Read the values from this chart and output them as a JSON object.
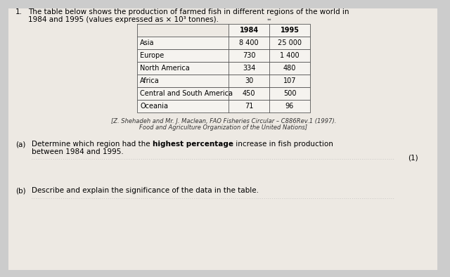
{
  "title_num": "1.",
  "title_line1": "The table below shows the production of farmed fish in different regions of the world in",
  "title_line2": "1984 and 1995 (values expressed as × 10³ tonnes).",
  "col_headers": [
    "1984",
    "1995"
  ],
  "rows": [
    [
      "Asia",
      "8 400",
      "25 000"
    ],
    [
      "Europe",
      "730",
      "1 400"
    ],
    [
      "North America",
      "334",
      "480"
    ],
    [
      "Africa",
      "30",
      "107"
    ],
    [
      "Central and South America",
      "450",
      "500"
    ],
    [
      "Oceania",
      "71",
      "96"
    ]
  ],
  "citation_line1": "[Z. Shehadeh and Mr. J. Maclean, FAO Fisheries Circular – C886Rev.1 (1997).",
  "citation_line2": "Food and Agriculture Organization of the United Nations]",
  "question_a_pre": "Determine which region had the ",
  "question_a_bold": "highest percentage",
  "question_a_post": " increase in fish production",
  "question_a_line2": "between 1984 and 1995.",
  "question_b_text": "Describe and explain the significance of the data in the table.",
  "marks_a": "(1)",
  "bg_color": "#cccccc",
  "paper_color": "#ede9e3",
  "table_bg": "#f5f3ef",
  "font_size_title": 7.5,
  "font_size_table": 7.0,
  "font_size_body": 7.5,
  "font_size_cite": 6.0
}
